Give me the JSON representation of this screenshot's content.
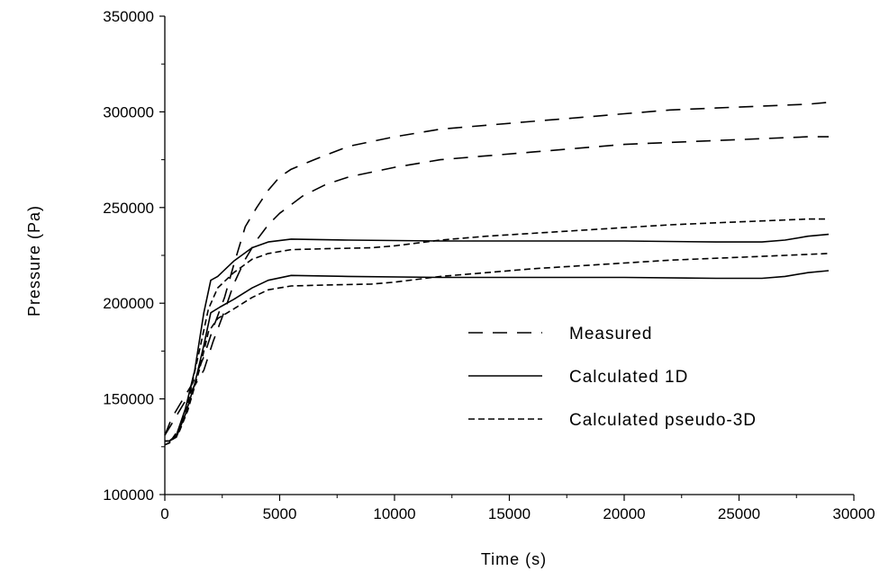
{
  "chart_data": {
    "type": "line",
    "xlabel": "Time (s)",
    "ylabel": "Pressure (Pa)",
    "xlim": [
      0,
      30000
    ],
    "ylim": [
      100000,
      350000
    ],
    "x_ticks": [
      0,
      5000,
      10000,
      15000,
      20000,
      25000,
      30000
    ],
    "y_ticks": [
      100000,
      150000,
      200000,
      250000,
      300000,
      350000
    ],
    "grid": false,
    "legend_position": "center-right",
    "legend": [
      {
        "label": "Measured",
        "style": "long-dash"
      },
      {
        "label": "Calculated 1D",
        "style": "solid"
      },
      {
        "label": "Calculated pseudo-3D",
        "style": "short-dash"
      }
    ],
    "series": [
      {
        "legend_index": 0,
        "style": "long-dash",
        "points": [
          [
            0,
            131000
          ],
          [
            300,
            140000
          ],
          [
            700,
            148000
          ],
          [
            1200,
            158000
          ],
          [
            1700,
            172000
          ],
          [
            2100,
            187000
          ],
          [
            2600,
            203000
          ],
          [
            3000,
            220000
          ],
          [
            3500,
            240000
          ],
          [
            4000,
            250000
          ],
          [
            4500,
            259000
          ],
          [
            5000,
            266000
          ],
          [
            5500,
            270000
          ],
          [
            6500,
            275000
          ],
          [
            8000,
            282000
          ],
          [
            10000,
            287000
          ],
          [
            12000,
            291000
          ],
          [
            14000,
            293000
          ],
          [
            16000,
            295000
          ],
          [
            18000,
            297000
          ],
          [
            20000,
            299000
          ],
          [
            22000,
            301000
          ],
          [
            24000,
            302000
          ],
          [
            26000,
            303000
          ],
          [
            28000,
            304000
          ],
          [
            28900,
            305000
          ]
        ]
      },
      {
        "legend_index": 0,
        "style": "long-dash",
        "points": [
          [
            0,
            131000
          ],
          [
            300,
            137000
          ],
          [
            700,
            145000
          ],
          [
            1200,
            155000
          ],
          [
            1700,
            165000
          ],
          [
            2100,
            180000
          ],
          [
            2600,
            196000
          ],
          [
            3000,
            210000
          ],
          [
            3500,
            223000
          ],
          [
            4000,
            233000
          ],
          [
            4500,
            241000
          ],
          [
            5000,
            247000
          ],
          [
            6000,
            256000
          ],
          [
            7000,
            262000
          ],
          [
            8000,
            266000
          ],
          [
            10000,
            271000
          ],
          [
            12000,
            275000
          ],
          [
            14000,
            277000
          ],
          [
            16000,
            279000
          ],
          [
            18000,
            281000
          ],
          [
            20000,
            283000
          ],
          [
            22000,
            284000
          ],
          [
            24000,
            285000
          ],
          [
            26000,
            286000
          ],
          [
            28000,
            287000
          ],
          [
            28900,
            287000
          ]
        ]
      },
      {
        "legend_index": 1,
        "style": "solid",
        "points": [
          [
            0,
            128000
          ],
          [
            200,
            128000
          ],
          [
            500,
            131000
          ],
          [
            900,
            145000
          ],
          [
            1300,
            165000
          ],
          [
            1700,
            195000
          ],
          [
            2000,
            212000
          ],
          [
            2300,
            214000
          ],
          [
            3000,
            222000
          ],
          [
            3800,
            229000
          ],
          [
            4500,
            232000
          ],
          [
            5500,
            233500
          ],
          [
            8000,
            233000
          ],
          [
            12000,
            232500
          ],
          [
            16000,
            232500
          ],
          [
            20000,
            232500
          ],
          [
            24000,
            232000
          ],
          [
            26000,
            232000
          ],
          [
            27000,
            233000
          ],
          [
            28000,
            235000
          ],
          [
            28900,
            236000
          ]
        ]
      },
      {
        "legend_index": 1,
        "style": "solid",
        "points": [
          [
            0,
            128000
          ],
          [
            200,
            128000
          ],
          [
            500,
            130000
          ],
          [
            900,
            142000
          ],
          [
            1300,
            158000
          ],
          [
            1700,
            178000
          ],
          [
            2000,
            195000
          ],
          [
            2400,
            198000
          ],
          [
            3000,
            202000
          ],
          [
            3800,
            208000
          ],
          [
            4500,
            212000
          ],
          [
            5500,
            214500
          ],
          [
            8000,
            214000
          ],
          [
            12000,
            213500
          ],
          [
            16000,
            213500
          ],
          [
            20000,
            213500
          ],
          [
            24000,
            213000
          ],
          [
            26000,
            213000
          ],
          [
            27000,
            214000
          ],
          [
            28000,
            216000
          ],
          [
            28900,
            217000
          ]
        ]
      },
      {
        "legend_index": 2,
        "style": "short-dash",
        "points": [
          [
            0,
            126000
          ],
          [
            200,
            127000
          ],
          [
            600,
            134000
          ],
          [
            1000,
            148000
          ],
          [
            1500,
            175000
          ],
          [
            1900,
            197000
          ],
          [
            2300,
            208000
          ],
          [
            3000,
            216000
          ],
          [
            3800,
            223000
          ],
          [
            4500,
            226000
          ],
          [
            5500,
            228000
          ],
          [
            7000,
            228500
          ],
          [
            9000,
            229000
          ],
          [
            10000,
            230000
          ],
          [
            12000,
            233000
          ],
          [
            14000,
            235000
          ],
          [
            16000,
            236500
          ],
          [
            18000,
            238000
          ],
          [
            20000,
            239500
          ],
          [
            22000,
            241000
          ],
          [
            24000,
            242000
          ],
          [
            26000,
            243000
          ],
          [
            28000,
            244000
          ],
          [
            28900,
            244000
          ]
        ]
      },
      {
        "legend_index": 2,
        "style": "short-dash",
        "points": [
          [
            0,
            126000
          ],
          [
            200,
            127000
          ],
          [
            600,
            132000
          ],
          [
            1000,
            144000
          ],
          [
            1500,
            165000
          ],
          [
            1900,
            185000
          ],
          [
            2300,
            192000
          ],
          [
            3000,
            197000
          ],
          [
            3800,
            203000
          ],
          [
            4500,
            207000
          ],
          [
            5500,
            209000
          ],
          [
            7000,
            209500
          ],
          [
            9000,
            210000
          ],
          [
            10000,
            211000
          ],
          [
            12000,
            214000
          ],
          [
            14000,
            216000
          ],
          [
            16000,
            218000
          ],
          [
            18000,
            219500
          ],
          [
            20000,
            221000
          ],
          [
            22000,
            222500
          ],
          [
            24000,
            223500
          ],
          [
            26000,
            224500
          ],
          [
            28000,
            225500
          ],
          [
            28900,
            226000
          ]
        ]
      }
    ]
  }
}
